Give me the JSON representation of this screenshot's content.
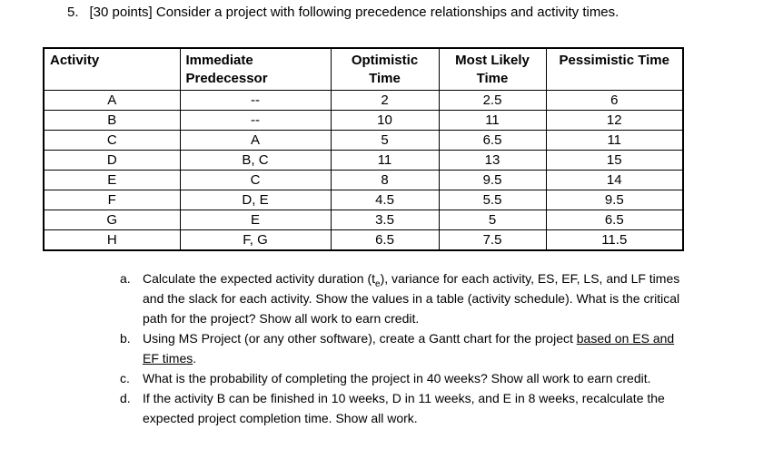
{
  "colors": {
    "background": "#ffffff",
    "text": "#000000",
    "table_border": "#000000"
  },
  "problem": {
    "number": "5.",
    "statement": "[30 points] Consider a project with following precedence relationships and activity times."
  },
  "table": {
    "headers": [
      "Activity",
      "Immediate Predecessor",
      "Optimistic Time",
      "Most Likely Time",
      "Pessimistic Time"
    ],
    "rows": [
      {
        "activity": "A",
        "predecessor": "--",
        "optimistic": "2",
        "most_likely": "2.5",
        "pessimistic": "6"
      },
      {
        "activity": "B",
        "predecessor": "--",
        "optimistic": "10",
        "most_likely": "11",
        "pessimistic": "12"
      },
      {
        "activity": "C",
        "predecessor": "A",
        "optimistic": "5",
        "most_likely": "6.5",
        "pessimistic": "11"
      },
      {
        "activity": "D",
        "predecessor": "B, C",
        "optimistic": "11",
        "most_likely": "13",
        "pessimistic": "15"
      },
      {
        "activity": "E",
        "predecessor": "C",
        "optimistic": "8",
        "most_likely": "9.5",
        "pessimistic": "14"
      },
      {
        "activity": "F",
        "predecessor": "D, E",
        "optimistic": "4.5",
        "most_likely": "5.5",
        "pessimistic": "9.5"
      },
      {
        "activity": "G",
        "predecessor": "E",
        "optimistic": "3.5",
        "most_likely": "5",
        "pessimistic": "6.5"
      },
      {
        "activity": "H",
        "predecessor": "F, G",
        "optimistic": "6.5",
        "most_likely": "7.5",
        "pessimistic": "11.5"
      }
    ]
  },
  "questions": {
    "a": {
      "label": "a.",
      "text_1": "Calculate the expected activity duration (t",
      "subscript": "e",
      "text_2": "), variance for each activity, ES, EF, LS, and LF times and the slack for each activity. Show the values in a table (activity schedule). What is the critical path for the project? Show all work to earn credit."
    },
    "b": {
      "label": "b.",
      "text_1": "Using MS Project (or any other software), create a Gantt chart for the project ",
      "underlined": "based on ES and EF times",
      "text_2": "."
    },
    "c": {
      "label": "c.",
      "text": "What is the probability of completing the project in 40 weeks? Show all work to earn credit."
    },
    "d": {
      "label": "d.",
      "text": "If the activity B can be finished in 10 weeks, D in 11 weeks, and E in 8 weeks, recalculate the expected project completion time. Show all work."
    }
  }
}
